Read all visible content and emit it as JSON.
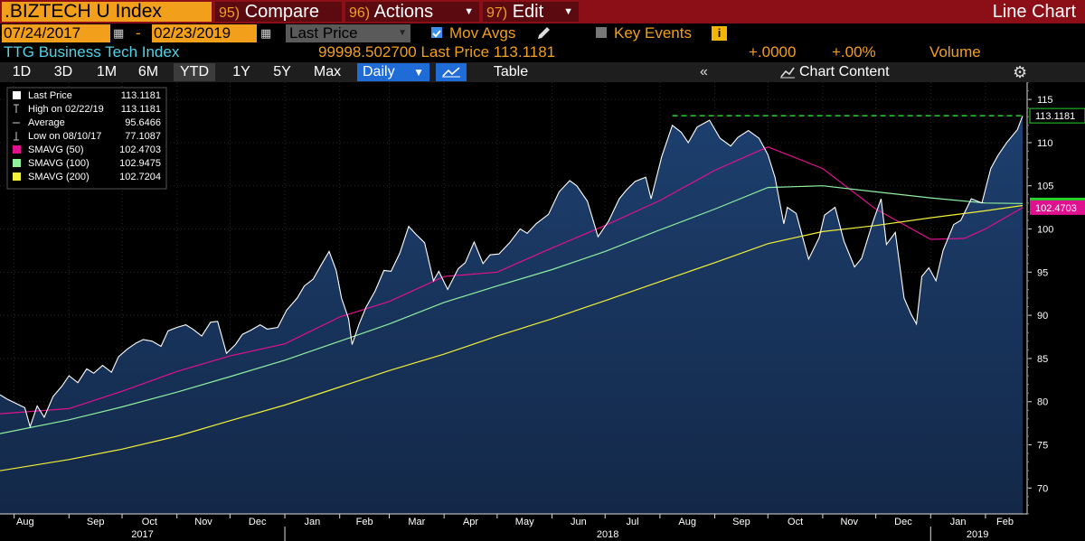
{
  "header": {
    "ticker": ".BIZTECH U Index",
    "compare": {
      "num": "95)",
      "label": "Compare"
    },
    "actions": {
      "num": "96)",
      "label": "Actions"
    },
    "edit": {
      "num": "97)",
      "label": "Edit"
    },
    "chart_type": "Line Chart"
  },
  "controls": {
    "start_date": "07/24/2017",
    "end_date": "02/23/2019",
    "date_sep": "-",
    "field": "Last Price",
    "mov_avgs_label": "Mov Avgs",
    "key_events_label": "Key Events",
    "info_icon": "i"
  },
  "quote": {
    "name": "TTG Business Tech Index",
    "field_text": "99998.502700 Last Price 113.1181",
    "change": "+.0000",
    "pct_change": "+.00%",
    "volume_label": "Volume"
  },
  "toolbar": {
    "tabs": [
      "1D",
      "3D",
      "1M",
      "6M",
      "YTD",
      "1Y",
      "5Y",
      "Max"
    ],
    "active_tab": "YTD",
    "frequency": "Daily",
    "table_label": "Table",
    "collapse_icon": "double-chevron-left-icon",
    "chart_content_label": "Chart Content"
  },
  "colors": {
    "accent": "#f29f1b",
    "top_bar": "#8c0f17",
    "price_line": "#ffffff",
    "area_fill": "#18345c",
    "sma50": "#e0118f",
    "sma100": "#8ff0a0",
    "sma200": "#f2f03a",
    "last_price_marker": "#2ad32a"
  },
  "chart_data": {
    "type": "area",
    "title": "",
    "x_start": "2017-07-24",
    "x_end": "2019-02-23",
    "ylim": [
      67,
      117
    ],
    "yticks": [
      70,
      75,
      80,
      85,
      90,
      95,
      100,
      105,
      110,
      115
    ],
    "month_labels": [
      "Aug",
      "Sep",
      "Oct",
      "Nov",
      "Dec",
      "Jan",
      "Feb",
      "Mar",
      "Apr",
      "May",
      "Jun",
      "Jul",
      "Aug",
      "Sep",
      "Oct",
      "Nov",
      "Dec",
      "Jan",
      "Feb"
    ],
    "year_labels": [
      "2017",
      "2018",
      "2019"
    ],
    "legend": [
      {
        "name": "Last Price",
        "value": "113.1181",
        "marker": "square-white"
      },
      {
        "name": "High on 02/22/19",
        "value": "113.1181",
        "marker": "high"
      },
      {
        "name": "Average",
        "value": "95.6466",
        "marker": "avg"
      },
      {
        "name": "Low on 08/10/17",
        "value": "77.1087",
        "marker": "low"
      },
      {
        "name": "SMAVG (50)",
        "value": "102.4703",
        "marker": "sma50"
      },
      {
        "name": "SMAVG (100)",
        "value": "102.9475",
        "marker": "sma100"
      },
      {
        "name": "SMAVG (200)",
        "value": "102.7204",
        "marker": "sma200"
      }
    ],
    "last_price_label": "113.1181",
    "sma50_label": "102.4703",
    "high_reference": 113.1181,
    "series": [
      {
        "name": "Last Price",
        "points": [
          [
            "2017-07-24",
            80.8
          ],
          [
            "2017-07-28",
            80.3
          ],
          [
            "2017-08-02",
            79.8
          ],
          [
            "2017-08-07",
            79.3
          ],
          [
            "2017-08-10",
            77.1
          ],
          [
            "2017-08-14",
            79.5
          ],
          [
            "2017-08-18",
            78.2
          ],
          [
            "2017-08-23",
            80.6
          ],
          [
            "2017-08-28",
            81.8
          ],
          [
            "2017-09-01",
            83.0
          ],
          [
            "2017-09-06",
            82.2
          ],
          [
            "2017-09-11",
            83.8
          ],
          [
            "2017-09-15",
            83.3
          ],
          [
            "2017-09-20",
            84.2
          ],
          [
            "2017-09-25",
            83.4
          ],
          [
            "2017-09-29",
            85.2
          ],
          [
            "2017-10-04",
            86.1
          ],
          [
            "2017-10-09",
            86.8
          ],
          [
            "2017-10-13",
            87.2
          ],
          [
            "2017-10-18",
            87.0
          ],
          [
            "2017-10-23",
            86.4
          ],
          [
            "2017-10-27",
            88.2
          ],
          [
            "2017-11-01",
            88.6
          ],
          [
            "2017-11-06",
            88.9
          ],
          [
            "2017-11-10",
            88.4
          ],
          [
            "2017-11-15",
            87.6
          ],
          [
            "2017-11-20",
            89.2
          ],
          [
            "2017-11-24",
            89.3
          ],
          [
            "2017-11-29",
            85.6
          ],
          [
            "2017-12-04",
            86.6
          ],
          [
            "2017-12-08",
            87.8
          ],
          [
            "2017-12-13",
            88.3
          ],
          [
            "2017-12-18",
            88.9
          ],
          [
            "2017-12-22",
            88.4
          ],
          [
            "2017-12-28",
            88.6
          ],
          [
            "2018-01-02",
            90.6
          ],
          [
            "2018-01-08",
            92.0
          ],
          [
            "2018-01-12",
            93.4
          ],
          [
            "2018-01-17",
            94.2
          ],
          [
            "2018-01-22",
            96.0
          ],
          [
            "2018-01-26",
            97.4
          ],
          [
            "2018-01-30",
            95.2
          ],
          [
            "2018-02-02",
            92.0
          ],
          [
            "2018-02-06",
            89.6
          ],
          [
            "2018-02-08",
            86.6
          ],
          [
            "2018-02-12",
            89.0
          ],
          [
            "2018-02-16",
            91.0
          ],
          [
            "2018-02-21",
            92.8
          ],
          [
            "2018-02-26",
            95.2
          ],
          [
            "2018-03-02",
            95.1
          ],
          [
            "2018-03-07",
            97.2
          ],
          [
            "2018-03-12",
            100.3
          ],
          [
            "2018-03-16",
            99.4
          ],
          [
            "2018-03-21",
            98.4
          ],
          [
            "2018-03-26",
            94.0
          ],
          [
            "2018-03-29",
            95.1
          ],
          [
            "2018-04-03",
            93.0
          ],
          [
            "2018-04-09",
            95.4
          ],
          [
            "2018-04-13",
            96.1
          ],
          [
            "2018-04-18",
            98.5
          ],
          [
            "2018-04-23",
            96.0
          ],
          [
            "2018-04-27",
            97.0
          ],
          [
            "2018-05-02",
            97.1
          ],
          [
            "2018-05-08",
            98.4
          ],
          [
            "2018-05-14",
            100.0
          ],
          [
            "2018-05-18",
            99.5
          ],
          [
            "2018-05-23",
            100.6
          ],
          [
            "2018-05-30",
            101.7
          ],
          [
            "2018-06-05",
            104.3
          ],
          [
            "2018-06-11",
            105.6
          ],
          [
            "2018-06-15",
            105.0
          ],
          [
            "2018-06-21",
            103.2
          ],
          [
            "2018-06-27",
            99.1
          ],
          [
            "2018-07-03",
            100.9
          ],
          [
            "2018-07-09",
            103.5
          ],
          [
            "2018-07-13",
            104.5
          ],
          [
            "2018-07-18",
            105.5
          ],
          [
            "2018-07-24",
            106.0
          ],
          [
            "2018-07-27",
            103.5
          ],
          [
            "2018-08-02",
            108.4
          ],
          [
            "2018-08-08",
            112.0
          ],
          [
            "2018-08-13",
            111.2
          ],
          [
            "2018-08-17",
            110.0
          ],
          [
            "2018-08-22",
            111.8
          ],
          [
            "2018-08-29",
            112.6
          ],
          [
            "2018-09-04",
            110.5
          ],
          [
            "2018-09-10",
            109.6
          ],
          [
            "2018-09-14",
            110.6
          ],
          [
            "2018-09-20",
            111.4
          ],
          [
            "2018-09-26",
            110.5
          ],
          [
            "2018-10-01",
            108.6
          ],
          [
            "2018-10-05",
            106.0
          ],
          [
            "2018-10-10",
            100.6
          ],
          [
            "2018-10-12",
            102.5
          ],
          [
            "2018-10-17",
            101.8
          ],
          [
            "2018-10-24",
            96.5
          ],
          [
            "2018-10-30",
            99.0
          ],
          [
            "2018-11-02",
            101.6
          ],
          [
            "2018-11-08",
            102.5
          ],
          [
            "2018-11-13",
            98.6
          ],
          [
            "2018-11-19",
            95.6
          ],
          [
            "2018-11-23",
            96.6
          ],
          [
            "2018-11-29",
            100.6
          ],
          [
            "2018-12-04",
            103.5
          ],
          [
            "2018-12-07",
            98.2
          ],
          [
            "2018-12-12",
            99.6
          ],
          [
            "2018-12-17",
            92.0
          ],
          [
            "2018-12-21",
            90.1
          ],
          [
            "2018-12-24",
            89.0
          ],
          [
            "2018-12-27",
            94.5
          ],
          [
            "2018-12-31",
            95.5
          ],
          [
            "2019-01-04",
            94.0
          ],
          [
            "2019-01-08",
            97.5
          ],
          [
            "2019-01-14",
            100.5
          ],
          [
            "2019-01-18",
            101.0
          ],
          [
            "2019-01-24",
            103.5
          ],
          [
            "2019-01-30",
            103.0
          ],
          [
            "2019-02-04",
            107.0
          ],
          [
            "2019-02-08",
            108.5
          ],
          [
            "2019-02-13",
            110.0
          ],
          [
            "2019-02-19",
            111.5
          ],
          [
            "2019-02-22",
            113.1
          ]
        ]
      },
      {
        "name": "SMAVG (50)",
        "points": [
          [
            "2017-07-24",
            78.6
          ],
          [
            "2017-09-01",
            79.2
          ],
          [
            "2017-10-01",
            81.2
          ],
          [
            "2017-11-01",
            83.5
          ],
          [
            "2017-12-01",
            85.3
          ],
          [
            "2018-01-01",
            86.7
          ],
          [
            "2018-02-01",
            89.8
          ],
          [
            "2018-03-01",
            91.6
          ],
          [
            "2018-04-01",
            94.5
          ],
          [
            "2018-05-01",
            95.0
          ],
          [
            "2018-06-01",
            97.8
          ],
          [
            "2018-07-01",
            100.4
          ],
          [
            "2018-08-01",
            103.3
          ],
          [
            "2018-09-01",
            106.8
          ],
          [
            "2018-10-01",
            109.5
          ],
          [
            "2018-11-01",
            107.0
          ],
          [
            "2018-12-01",
            102.3
          ],
          [
            "2019-01-01",
            98.8
          ],
          [
            "2019-01-20",
            98.9
          ],
          [
            "2019-02-01",
            100.0
          ],
          [
            "2019-02-22",
            102.4703
          ]
        ]
      },
      {
        "name": "SMAVG (100)",
        "points": [
          [
            "2017-07-24",
            76.3
          ],
          [
            "2017-09-01",
            77.9
          ],
          [
            "2017-10-01",
            79.4
          ],
          [
            "2017-11-01",
            81.1
          ],
          [
            "2017-12-01",
            82.9
          ],
          [
            "2018-01-01",
            84.8
          ],
          [
            "2018-02-01",
            87.0
          ],
          [
            "2018-03-01",
            89.0
          ],
          [
            "2018-04-01",
            91.5
          ],
          [
            "2018-05-01",
            93.4
          ],
          [
            "2018-06-01",
            95.3
          ],
          [
            "2018-07-01",
            97.4
          ],
          [
            "2018-08-01",
            99.9
          ],
          [
            "2018-09-01",
            102.3
          ],
          [
            "2018-10-01",
            104.8
          ],
          [
            "2018-11-01",
            105.0
          ],
          [
            "2018-12-01",
            104.3
          ],
          [
            "2019-01-01",
            103.6
          ],
          [
            "2019-02-01",
            103.0
          ],
          [
            "2019-02-22",
            102.9475
          ]
        ]
      },
      {
        "name": "SMAVG (200)",
        "points": [
          [
            "2017-07-24",
            72.0
          ],
          [
            "2017-09-01",
            73.3
          ],
          [
            "2017-10-01",
            74.5
          ],
          [
            "2017-11-01",
            76.0
          ],
          [
            "2017-12-01",
            77.8
          ],
          [
            "2018-01-01",
            79.6
          ],
          [
            "2018-02-01",
            81.7
          ],
          [
            "2018-03-01",
            83.6
          ],
          [
            "2018-04-01",
            85.5
          ],
          [
            "2018-05-01",
            87.6
          ],
          [
            "2018-06-01",
            89.6
          ],
          [
            "2018-07-01",
            91.7
          ],
          [
            "2018-08-01",
            93.9
          ],
          [
            "2018-09-01",
            96.1
          ],
          [
            "2018-10-01",
            98.3
          ],
          [
            "2018-11-01",
            99.7
          ],
          [
            "2018-12-01",
            100.4
          ],
          [
            "2019-01-01",
            101.3
          ],
          [
            "2019-02-01",
            102.1
          ],
          [
            "2019-02-22",
            102.7204
          ]
        ]
      }
    ]
  }
}
